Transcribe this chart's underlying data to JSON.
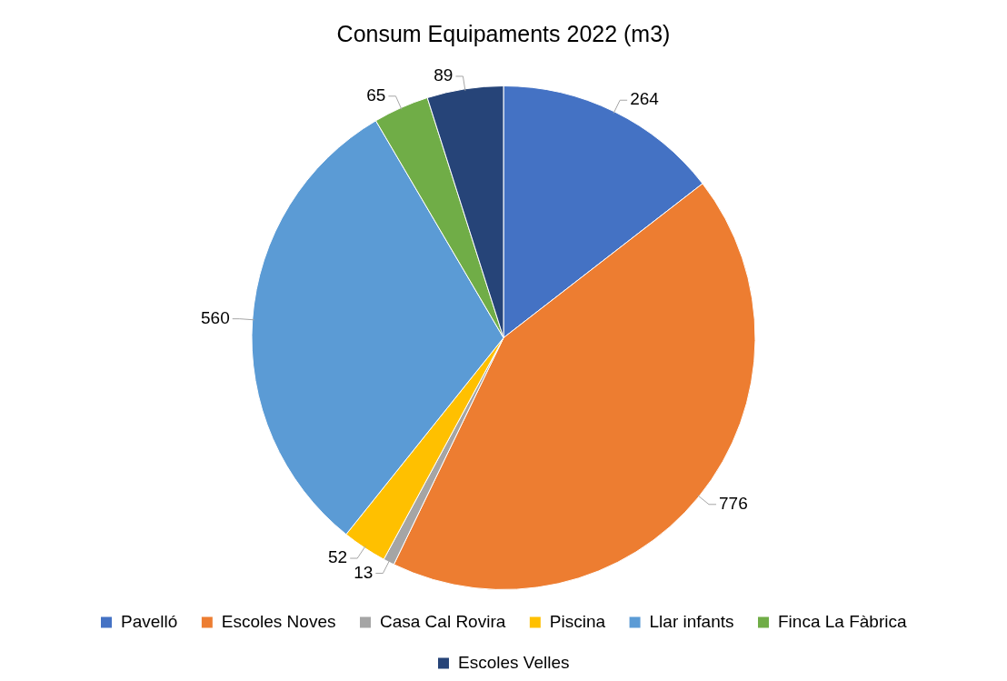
{
  "chart_data": {
    "type": "pie",
    "title": "Consum Equipaments 2022 (m3)",
    "categories": [
      "Pavelló",
      "Escoles Noves",
      "Casa Cal Rovira",
      "Piscina",
      "Llar infants",
      "Finca La Fàbrica",
      "Escoles Velles"
    ],
    "values": [
      264,
      776,
      13,
      52,
      560,
      65,
      89
    ],
    "colors": [
      "#4472c4",
      "#ed7d31",
      "#a5a5a5",
      "#ffc000",
      "#5b9bd5",
      "#70ad47",
      "#264478"
    ],
    "data_labels": true,
    "legend": "bottom"
  }
}
